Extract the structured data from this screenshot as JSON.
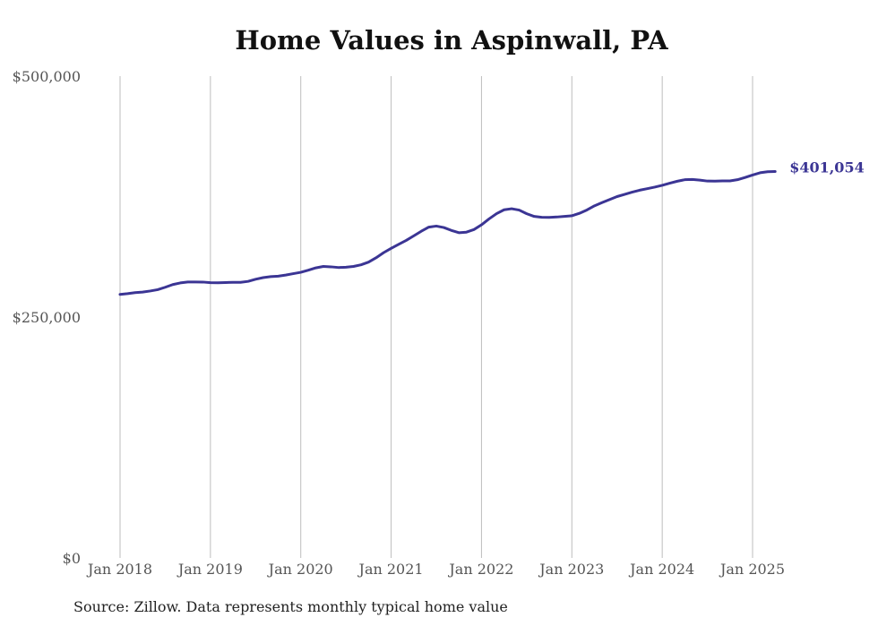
{
  "chart_data": {
    "type": "line",
    "title": "Home Values in Aspinwall, PA",
    "source": "Source: Zillow. Data represents monthly typical home value",
    "ylim": [
      0,
      500000
    ],
    "y_ticks": [
      {
        "value": 0,
        "label": "$0"
      },
      {
        "value": 250000,
        "label": "$250,000"
      },
      {
        "value": 500000,
        "label": "$500,000"
      }
    ],
    "x_ticks": [
      {
        "value": "2018-01",
        "label": "Jan 2018"
      },
      {
        "value": "2019-01",
        "label": "Jan 2019"
      },
      {
        "value": "2020-01",
        "label": "Jan 2020"
      },
      {
        "value": "2021-01",
        "label": "Jan 2021"
      },
      {
        "value": "2022-01",
        "label": "Jan 2022"
      },
      {
        "value": "2023-01",
        "label": "Jan 2023"
      },
      {
        "value": "2024-01",
        "label": "Jan 2024"
      },
      {
        "value": "2025-01",
        "label": "Jan 2025"
      }
    ],
    "grid": {
      "vertical": true,
      "horizontal": false
    },
    "line_color": "#3b3594",
    "end_label": "$401,054",
    "series": [
      {
        "x": [
          "2018-01",
          "2018-02",
          "2018-03",
          "2018-04",
          "2018-05",
          "2018-06",
          "2018-07",
          "2018-08",
          "2018-09",
          "2018-10",
          "2018-11",
          "2018-12",
          "2019-01",
          "2019-02",
          "2019-03",
          "2019-04",
          "2019-05",
          "2019-06",
          "2019-07",
          "2019-08",
          "2019-09",
          "2019-10",
          "2019-11",
          "2019-12",
          "2020-01",
          "2020-02",
          "2020-03",
          "2020-04",
          "2020-05",
          "2020-06",
          "2020-07",
          "2020-08",
          "2020-09",
          "2020-10",
          "2020-11",
          "2020-12",
          "2021-01",
          "2021-02",
          "2021-03",
          "2021-04",
          "2021-05",
          "2021-06",
          "2021-07",
          "2021-08",
          "2021-09",
          "2021-10",
          "2021-11",
          "2021-12",
          "2022-01",
          "2022-02",
          "2022-03",
          "2022-04",
          "2022-05",
          "2022-06",
          "2022-07",
          "2022-08",
          "2022-09",
          "2022-10",
          "2022-11",
          "2022-12",
          "2023-01",
          "2023-02",
          "2023-03",
          "2023-04",
          "2023-05",
          "2023-06",
          "2023-07",
          "2023-08",
          "2023-09",
          "2023-10",
          "2023-11",
          "2023-12",
          "2024-01",
          "2024-02",
          "2024-03",
          "2024-04",
          "2024-05",
          "2024-06",
          "2024-07",
          "2024-08",
          "2024-09",
          "2024-10",
          "2024-11",
          "2024-12",
          "2025-01",
          "2025-02",
          "2025-03",
          "2025-04"
        ],
        "values": [
          273500,
          274300,
          275300,
          275900,
          277000,
          278400,
          280900,
          283700,
          285400,
          286400,
          286400,
          286300,
          285700,
          285600,
          285800,
          286000,
          286000,
          287000,
          289200,
          290900,
          291900,
          292400,
          293600,
          295000,
          296400,
          298600,
          301000,
          302500,
          302100,
          301400,
          301700,
          302500,
          304200,
          307000,
          311500,
          316800,
          321300,
          325500,
          329500,
          334200,
          339000,
          343300,
          344400,
          342900,
          339900,
          337500,
          338100,
          340800,
          345700,
          351800,
          357300,
          361300,
          362400,
          361000,
          357200,
          354400,
          353500,
          353400,
          353800,
          354400,
          355100,
          357600,
          361100,
          365400,
          368700,
          371900,
          375000,
          377300,
          379600,
          381600,
          383200,
          384800,
          386700,
          388900,
          390900,
          392500,
          392800,
          392100,
          391100,
          391000,
          391300,
          391300,
          392500,
          394800,
          397400,
          399700,
          400800,
          401054
        ]
      }
    ]
  }
}
